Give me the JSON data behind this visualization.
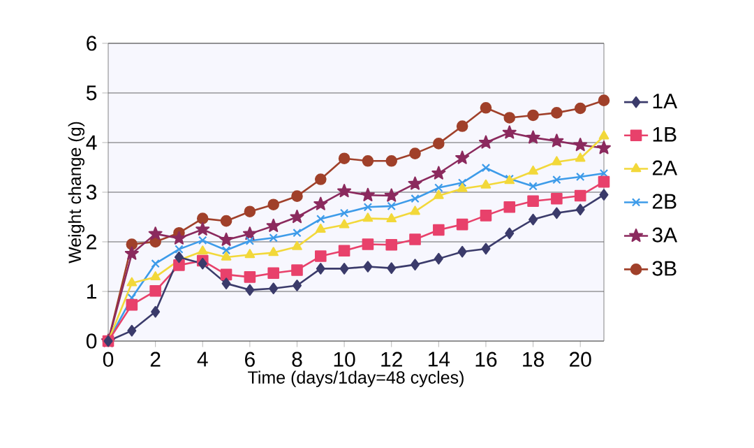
{
  "chart_data": {
    "type": "line",
    "xlabel": "Time (days/1day=48 cycles)",
    "ylabel": "Weight change (g)",
    "x": [
      0,
      1,
      2,
      3,
      4,
      5,
      6,
      7,
      8,
      9,
      10,
      11,
      12,
      13,
      14,
      15,
      16,
      17,
      18,
      19,
      20,
      21
    ],
    "xlim": [
      0,
      21
    ],
    "xticks": [
      0,
      2,
      4,
      6,
      8,
      10,
      12,
      14,
      16,
      18,
      20
    ],
    "ylim": [
      0,
      6
    ],
    "yticks": [
      0,
      1,
      2,
      3,
      4,
      5,
      6
    ],
    "grid": "y",
    "legend": "right",
    "line_style": "solid",
    "series": [
      {
        "name": "1A",
        "color": "#3b3b6b",
        "marker": "diamond",
        "values": [
          0,
          0.21,
          0.59,
          1.69,
          1.56,
          1.16,
          1.03,
          1.06,
          1.12,
          1.46,
          1.46,
          1.5,
          1.47,
          1.54,
          1.66,
          1.8,
          1.86,
          2.17,
          2.45,
          2.58,
          2.65,
          2.95
        ]
      },
      {
        "name": "1B",
        "color": "#e8416b",
        "marker": "square",
        "values": [
          0,
          0.73,
          1.01,
          1.53,
          1.62,
          1.34,
          1.29,
          1.37,
          1.43,
          1.71,
          1.82,
          1.95,
          1.94,
          2.05,
          2.24,
          2.35,
          2.53,
          2.7,
          2.82,
          2.87,
          2.93,
          3.21
        ]
      },
      {
        "name": "2A",
        "color": "#f2d83a",
        "marker": "triangle",
        "values": [
          0,
          1.17,
          1.29,
          1.63,
          1.81,
          1.69,
          1.74,
          1.78,
          1.9,
          2.25,
          2.34,
          2.47,
          2.46,
          2.61,
          2.93,
          3.07,
          3.14,
          3.23,
          3.42,
          3.61,
          3.68,
          4.13
        ]
      },
      {
        "name": "2B",
        "color": "#3d9be9",
        "marker": "cross",
        "values": [
          0,
          0.87,
          1.56,
          1.85,
          2.03,
          1.83,
          2.02,
          2.08,
          2.18,
          2.46,
          2.58,
          2.7,
          2.72,
          2.87,
          3.09,
          3.19,
          3.49,
          3.27,
          3.12,
          3.25,
          3.31,
          3.38
        ]
      },
      {
        "name": "3A",
        "color": "#8b2a5e",
        "marker": "star",
        "values": [
          0,
          1.76,
          2.16,
          2.07,
          2.25,
          2.04,
          2.16,
          2.32,
          2.5,
          2.76,
          3.02,
          2.94,
          2.93,
          3.17,
          3.38,
          3.69,
          4.0,
          4.2,
          4.1,
          4.03,
          3.95,
          3.89
        ]
      },
      {
        "name": "3B",
        "color": "#a0402a",
        "marker": "circle",
        "values": [
          0,
          1.95,
          2.0,
          2.18,
          2.47,
          2.42,
          2.61,
          2.75,
          2.92,
          3.26,
          3.68,
          3.63,
          3.63,
          3.78,
          3.98,
          4.33,
          4.7,
          4.5,
          4.55,
          4.6,
          4.69,
          4.85
        ]
      }
    ]
  }
}
